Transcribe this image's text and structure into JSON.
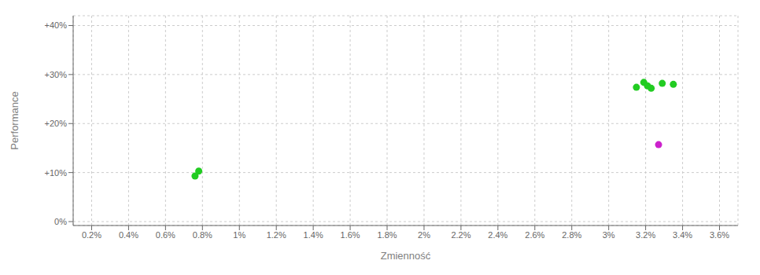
{
  "chart_data": {
    "type": "scatter",
    "xlabel": "Zmienność",
    "ylabel": "Performance",
    "xlim": [
      0.001,
      0.037
    ],
    "ylim": [
      -0.008,
      0.42
    ],
    "xticks": [
      {
        "value": 0.002,
        "label": "0.2%"
      },
      {
        "value": 0.004,
        "label": "0.4%"
      },
      {
        "value": 0.006,
        "label": "0.6%"
      },
      {
        "value": 0.008,
        "label": "0.8%"
      },
      {
        "value": 0.01,
        "label": "1%"
      },
      {
        "value": 0.012,
        "label": "1.2%"
      },
      {
        "value": 0.014,
        "label": "1.4%"
      },
      {
        "value": 0.016,
        "label": "1.6%"
      },
      {
        "value": 0.018,
        "label": "1.8%"
      },
      {
        "value": 0.02,
        "label": "2%"
      },
      {
        "value": 0.022,
        "label": "2.2%"
      },
      {
        "value": 0.024,
        "label": "2.4%"
      },
      {
        "value": 0.026,
        "label": "2.6%"
      },
      {
        "value": 0.028,
        "label": "2.8%"
      },
      {
        "value": 0.03,
        "label": "3%"
      },
      {
        "value": 0.032,
        "label": "3.2%"
      },
      {
        "value": 0.034,
        "label": "3.4%"
      },
      {
        "value": 0.036,
        "label": "3.6%"
      }
    ],
    "yticks": [
      {
        "value": 0.0,
        "label": "0%"
      },
      {
        "value": 0.1,
        "label": "+10%"
      },
      {
        "value": 0.2,
        "label": "+20%"
      },
      {
        "value": 0.3,
        "label": "+30%"
      },
      {
        "value": 0.4,
        "label": "+40%"
      }
    ],
    "grid": true,
    "series": [
      {
        "color": "#22cc22",
        "x": [
          0.0078,
          0.0076,
          0.0319,
          0.0321,
          0.0315,
          0.0323,
          0.0329,
          0.0335
        ],
        "y": [
          0.103,
          0.093,
          0.284,
          0.277,
          0.274,
          0.272,
          0.282,
          0.28
        ]
      },
      {
        "color": "#cc22cc",
        "x": [
          0.0327
        ],
        "y": [
          0.157
        ]
      }
    ]
  }
}
